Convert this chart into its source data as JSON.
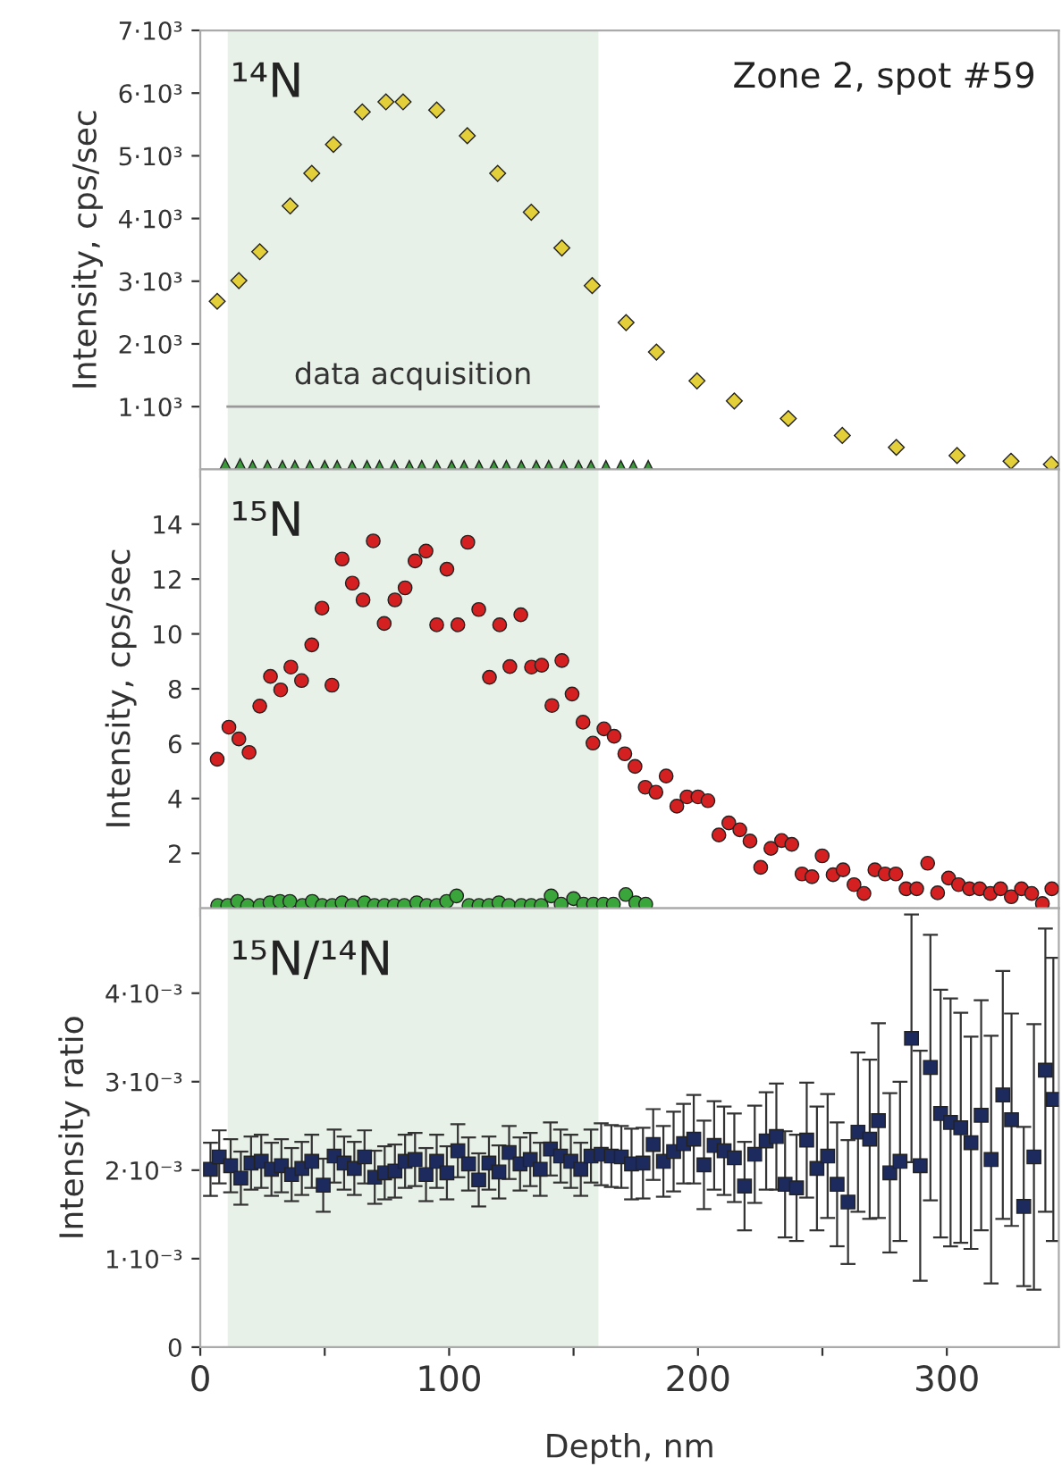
{
  "chart_data": [
    {
      "type": "scatter",
      "ylabel": "Intensity, cps/sec",
      "annotations": [
        "¹⁴N",
        "Zone 2, spot #59"
      ],
      "xlim": [
        0,
        345
      ],
      "xticks": [
        0,
        {
          "value": 50,
          "label": null
        },
        100,
        {
          "value": 150,
          "label": null
        },
        200,
        {
          "value": 250,
          "label": null
        },
        300
      ],
      "ylim": [
        0,
        7000
      ],
      "yticks": [
        {
          "value": 1000,
          "label": "1·10³"
        },
        {
          "value": 2000,
          "label": "2·10³"
        },
        {
          "value": 3000,
          "label": "3·10³"
        },
        {
          "value": 4000,
          "label": "4·10³"
        },
        {
          "value": 5000,
          "label": "5·10³"
        },
        {
          "value": 6000,
          "label": "6·10³"
        },
        {
          "value": 7000,
          "label": "7·10³"
        }
      ],
      "tick_labels": "y",
      "grid": false,
      "legend": false,
      "bands": [
        {
          "axis": "x",
          "from": 11,
          "to": 160,
          "label": "data acquisition",
          "color": "#e8f1e8"
        }
      ],
      "series": [
        {
          "marker": "diamond",
          "color": "#e3cf3a",
          "x": [
            6.8,
            15.5,
            23.9,
            36.1,
            44.8,
            53.5,
            65.1,
            74.6,
            81.5,
            95,
            107.3,
            119.5,
            133,
            145.3,
            157.5,
            171.1,
            183.3,
            199.6,
            214.6,
            236.3,
            258,
            279.7,
            304.1,
            325.8,
            342
          ],
          "values": [
            2680,
            3010,
            3470,
            4200,
            4720,
            5180,
            5700,
            5860,
            5860,
            5730,
            5320,
            4720,
            4100,
            3530,
            2930,
            2340,
            1870,
            1410,
            1090,
            810,
            540,
            350,
            220,
            130,
            80
          ]
        },
        {
          "type": "line",
          "color": "#999999",
          "x": [
            11,
            160
          ],
          "values": [
            1000,
            1000
          ]
        },
        {
          "marker": "triangle",
          "color": "#3a9a3a",
          "x": [
            10,
            16,
            21,
            27,
            33,
            38,
            44,
            50,
            55,
            61,
            67,
            72,
            78,
            84,
            89,
            95,
            101,
            106,
            112,
            118,
            123,
            129,
            135,
            140,
            146,
            152,
            157,
            163,
            169,
            174,
            180
          ],
          "values": [
            60,
            60,
            30,
            30,
            30,
            30,
            30,
            30,
            30,
            30,
            30,
            30,
            30,
            30,
            30,
            30,
            30,
            30,
            30,
            30,
            30,
            30,
            30,
            30,
            30,
            30,
            30,
            30,
            30,
            30,
            30
          ]
        }
      ]
    },
    {
      "type": "scatter",
      "ylabel": "Intensity, cps/sec",
      "annotations": [
        "¹⁵N"
      ],
      "xlim": [
        0,
        345
      ],
      "xticks": [
        0,
        {
          "value": 50,
          "label": null
        },
        100,
        {
          "value": 150,
          "label": null
        },
        200,
        {
          "value": 250,
          "label": null
        },
        300
      ],
      "ylim": [
        0,
        16
      ],
      "yticks": [
        2,
        4,
        6,
        8,
        10,
        12,
        14
      ],
      "tick_labels": "y",
      "grid": false,
      "legend": false,
      "bands": [
        {
          "axis": "x",
          "from": 11,
          "to": 160,
          "color": "#e8f1e8"
        }
      ],
      "series": [
        {
          "marker": "circle",
          "color": "#d42020",
          "x": [
            6.8,
            11.5,
            15.5,
            19.6,
            23.9,
            28.2,
            32.3,
            36.4,
            40.7,
            44.8,
            48.9,
            52.9,
            57,
            61.1,
            65.4,
            69.5,
            73.9,
            78.2,
            82.3,
            86.3,
            90.7,
            95,
            99.1,
            103.5,
            107.5,
            111.9,
            116.2,
            120.3,
            124.4,
            128.8,
            133.1,
            137.2,
            141.3,
            145.3,
            149.4,
            153.8,
            157.8,
            162.2,
            166.3,
            170.6,
            174.7,
            178.8,
            183.1,
            187.2,
            191.5,
            195.6,
            200,
            204,
            208.4,
            212.4,
            216.8,
            220.9,
            225.2,
            229.3,
            233.6,
            237.7,
            241.8,
            245.8,
            249.9,
            254.3,
            258.3,
            262.7,
            266.7,
            271.1,
            275.2,
            279.5,
            283.6,
            287.9,
            292.3,
            296.3,
            300.7,
            304.7,
            309.1,
            313.2,
            317.5,
            321.6,
            325.9,
            330,
            334.1,
            338.4,
            342.2
          ],
          "values": [
            5.43,
            6.6,
            6.17,
            5.68,
            7.37,
            8.45,
            7.96,
            8.79,
            8.3,
            9.6,
            10.94,
            8.13,
            12.73,
            11.85,
            11.24,
            13.39,
            10.38,
            11.24,
            11.68,
            12.66,
            13.02,
            10.33,
            12.36,
            10.33,
            13.34,
            10.89,
            8.42,
            10.33,
            8.81,
            10.7,
            8.79,
            8.86,
            7.39,
            9.03,
            7.81,
            6.78,
            6.02,
            6.54,
            6.27,
            5.63,
            5.17,
            4.41,
            4.23,
            4.82,
            3.72,
            4.06,
            4.06,
            3.92,
            2.67,
            3.11,
            2.86,
            2.45,
            1.49,
            2.18,
            2.47,
            2.33,
            1.25,
            1.15,
            1.91,
            1.22,
            1.4,
            0.86,
            0.54,
            1.4,
            1.25,
            1.25,
            0.71,
            0.71,
            1.64,
            0.56,
            1.1,
            0.86,
            0.71,
            0.71,
            0.54,
            0.71,
            0.42,
            0.71,
            0.54,
            0.17,
            0.71
          ]
        },
        {
          "marker": "circle",
          "color": "#3aa53a",
          "x": [
            7,
            11,
            15,
            19,
            24,
            28,
            32,
            36,
            41,
            45,
            49,
            53,
            57,
            61,
            66,
            70,
            74,
            78,
            82,
            87,
            91,
            95,
            99,
            103,
            108,
            112,
            116,
            120,
            124,
            129,
            133,
            137,
            141,
            145,
            150,
            154,
            158,
            162,
            166,
            171,
            175,
            179
          ],
          "values": [
            0.1,
            0.1,
            0.25,
            0.1,
            0.1,
            0.2,
            0.25,
            0.25,
            0.1,
            0.25,
            0.1,
            0.1,
            0.2,
            0.1,
            0.2,
            0.1,
            0.1,
            0.1,
            0.1,
            0.2,
            0.1,
            0.1,
            0.25,
            0.45,
            0.1,
            0.1,
            0.1,
            0.2,
            0.1,
            0.1,
            0.1,
            0.1,
            0.45,
            0.15,
            0.35,
            0.15,
            0.15,
            0.15,
            0.15,
            0.5,
            0.2,
            0.15
          ]
        }
      ]
    },
    {
      "type": "scatter",
      "ylabel": "Intensity ratio",
      "xlabel": "Depth, nm",
      "annotations": [
        "¹⁵N/¹⁴N"
      ],
      "xlim": [
        0,
        345
      ],
      "xticks": [
        0,
        {
          "value": 50,
          "label": null
        },
        100,
        {
          "value": 150,
          "label": null
        },
        200,
        {
          "value": 250,
          "label": null
        },
        300
      ],
      "ylim": [
        0,
        0.00496
      ],
      "yticks": [
        0,
        {
          "value": 0.001,
          "label": "1·10⁻³"
        },
        {
          "value": 0.002,
          "label": "2·10⁻³"
        },
        {
          "value": 0.003,
          "label": "3·10⁻³"
        },
        {
          "value": 0.004,
          "label": "4·10⁻³"
        }
      ],
      "grid": false,
      "legend": false,
      "bands": [
        {
          "axis": "x",
          "from": 11,
          "to": 160,
          "color": "#e8f1e8"
        }
      ],
      "series": [
        {
          "marker": "square",
          "color": "#1c2a5e",
          "x": [
            4.1,
            7.6,
            12.2,
            16.3,
            20.4,
            24.5,
            28.6,
            32.6,
            36.7,
            40.8,
            44.8,
            49.4,
            53.8,
            57.8,
            61.9,
            66,
            70.1,
            74.1,
            78.2,
            82.3,
            86.3,
            90.7,
            95,
            99.1,
            103.5,
            107.8,
            111.9,
            116,
            120,
            124.1,
            128.5,
            132.6,
            136.6,
            140.7,
            144.8,
            148.9,
            152.9,
            157,
            161.1,
            165.2,
            169.2,
            173.3,
            177.9,
            182,
            186.1,
            190.2,
            194.2,
            198.3,
            202.4,
            206.5,
            210.5,
            214.6,
            218.7,
            222.8,
            227.4,
            231.5,
            235,
            239.6,
            243.7,
            247.8,
            252.1,
            255.9,
            260.3,
            264.3,
            269,
            272.5,
            277.1,
            281.2,
            285.8,
            289.3,
            293.4,
            297.5,
            301.5,
            305.6,
            309.7,
            313.8,
            317.8,
            322.5,
            326,
            330.9,
            335,
            339.6,
            342.8
          ],
          "values": [
            0.00201,
            0.00215,
            0.00205,
            0.00191,
            0.00208,
            0.0021,
            0.00201,
            0.00205,
            0.00195,
            0.00202,
            0.0021,
            0.00183,
            0.00216,
            0.00208,
            0.00202,
            0.00215,
            0.00192,
            0.00197,
            0.00199,
            0.0021,
            0.00212,
            0.00195,
            0.0021,
            0.00197,
            0.00222,
            0.00207,
            0.00189,
            0.00208,
            0.00198,
            0.0022,
            0.00207,
            0.00212,
            0.00201,
            0.00224,
            0.00216,
            0.0021,
            0.00201,
            0.00216,
            0.00218,
            0.00216,
            0.00215,
            0.00207,
            0.00208,
            0.00229,
            0.0021,
            0.00221,
            0.0023,
            0.00235,
            0.00206,
            0.00228,
            0.00222,
            0.00214,
            0.00182,
            0.00218,
            0.00233,
            0.00238,
            0.00184,
            0.0018,
            0.00234,
            0.00202,
            0.00216,
            0.00184,
            0.00164,
            0.00243,
            0.00235,
            0.00256,
            0.00197,
            0.0021,
            0.00349,
            0.00205,
            0.00316,
            0.00264,
            0.00254,
            0.00248,
            0.00231,
            0.00262,
            0.00212,
            0.00285,
            0.00257,
            0.00159,
            0.00215,
            0.00313,
            0.0028
          ],
          "errors": [
            0.0003,
            0.0003,
            0.0003,
            0.0003,
            0.0003,
            0.0003,
            0.0003,
            0.0003,
            0.0003,
            0.0003,
            0.0003,
            0.0003,
            0.0003,
            0.0003,
            0.0003,
            0.0003,
            0.0003,
            0.0003,
            0.0003,
            0.0003,
            0.0003,
            0.0003,
            0.0003,
            0.0003,
            0.0003,
            0.0003,
            0.0003,
            0.0003,
            0.0003,
            0.0003,
            0.0003,
            0.0003,
            0.0003,
            0.0003,
            0.0003,
            0.0003,
            0.0003,
            0.0003,
            0.00035,
            0.00035,
            0.00035,
            0.0004,
            0.0004,
            0.0004,
            0.0004,
            0.00045,
            0.00045,
            0.0005,
            0.0005,
            0.0005,
            0.0005,
            0.0005,
            0.0005,
            0.00055,
            0.00055,
            0.0006,
            0.0006,
            0.0006,
            0.00065,
            0.0007,
            0.0007,
            0.0007,
            0.0007,
            0.0009,
            0.0009,
            0.0011,
            0.0009,
            0.0009,
            0.0014,
            0.0013,
            0.0015,
            0.0014,
            0.0014,
            0.0013,
            0.0012,
            0.0013,
            0.0014,
            0.0014,
            0.0012,
            0.0009,
            0.0015,
            0.0016,
            0.0016
          ]
        }
      ]
    }
  ]
}
